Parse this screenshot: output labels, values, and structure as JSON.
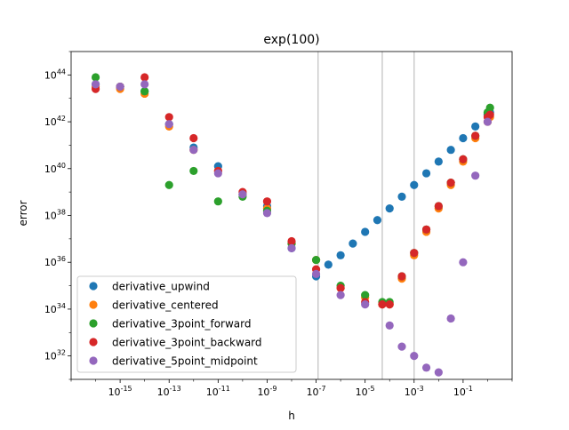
{
  "chart_data": {
    "type": "scatter",
    "title": "exp(100)",
    "xlabel": "h",
    "ylabel": "error",
    "xscale": "log",
    "yscale": "log",
    "xlim": [
      1e-17,
      10
    ],
    "ylim": [
      1e+31,
      1e+45
    ],
    "xticks": [
      {
        "exp": -15,
        "label": "10^-15"
      },
      {
        "exp": -13,
        "label": "10^-13"
      },
      {
        "exp": -11,
        "label": "10^-11"
      },
      {
        "exp": -9,
        "label": "10^-9"
      },
      {
        "exp": -7,
        "label": "10^-7"
      },
      {
        "exp": -5,
        "label": "10^-5"
      },
      {
        "exp": -3,
        "label": "10^-3"
      },
      {
        "exp": -1,
        "label": "10^-1"
      }
    ],
    "yticks": [
      {
        "exp": 32,
        "label": "10^32"
      },
      {
        "exp": 34,
        "label": "10^34"
      },
      {
        "exp": 36,
        "label": "10^36"
      },
      {
        "exp": 38,
        "label": "10^38"
      },
      {
        "exp": 40,
        "label": "10^40"
      },
      {
        "exp": 42,
        "label": "10^42"
      },
      {
        "exp": 44,
        "label": "10^44"
      }
    ],
    "vertical_lines": [
      1.2e-07,
      5e-05,
      0.001
    ],
    "legend_position": "lower-left",
    "series": [
      {
        "name": "derivative_upwind",
        "color": "#1f77b4",
        "points": [
          [
            -16.0,
            43.6
          ],
          [
            -15.0,
            43.5
          ],
          [
            -14.0,
            43.3
          ],
          [
            -13.0,
            41.9
          ],
          [
            -12.0,
            40.9
          ],
          [
            -11.0,
            40.1
          ],
          [
            -10.0,
            38.9
          ],
          [
            -9.0,
            38.4
          ],
          [
            -8.0,
            36.6
          ],
          [
            -7.0,
            35.4
          ],
          [
            -6.5,
            35.9
          ],
          [
            -6.0,
            36.3
          ],
          [
            -5.5,
            36.8
          ],
          [
            -5.0,
            37.3
          ],
          [
            -4.5,
            37.8
          ],
          [
            -4.0,
            38.3
          ],
          [
            -3.5,
            38.8
          ],
          [
            -3.0,
            39.3
          ],
          [
            -2.5,
            39.8
          ],
          [
            -2.0,
            40.3
          ],
          [
            -1.5,
            40.8
          ],
          [
            -1.0,
            41.3
          ],
          [
            -0.5,
            41.8
          ],
          [
            0.0,
            42.3
          ],
          [
            0.1,
            42.4
          ]
        ]
      },
      {
        "name": "derivative_centered",
        "color": "#ff7f0e",
        "points": [
          [
            -16.0,
            43.5
          ],
          [
            -15.0,
            43.4
          ],
          [
            -14.0,
            43.2
          ],
          [
            -13.0,
            41.8
          ],
          [
            -12.0,
            40.8
          ],
          [
            -11.0,
            39.9
          ],
          [
            -10.0,
            38.9
          ],
          [
            -9.0,
            38.3
          ],
          [
            -8.0,
            36.8
          ],
          [
            -7.0,
            36.1
          ],
          [
            -6.0,
            34.9
          ],
          [
            -5.0,
            34.5
          ],
          [
            -4.3,
            34.2
          ],
          [
            -4.0,
            34.2
          ],
          [
            -3.5,
            35.3
          ],
          [
            -3.0,
            36.3
          ],
          [
            -2.5,
            37.3
          ],
          [
            -2.0,
            38.3
          ],
          [
            -1.5,
            39.3
          ],
          [
            -1.0,
            40.3
          ],
          [
            -0.5,
            41.3
          ],
          [
            0.0,
            42.0
          ],
          [
            0.1,
            42.2
          ]
        ]
      },
      {
        "name": "derivative_3point_forward",
        "color": "#2ca02c",
        "points": [
          [
            -16.0,
            43.9
          ],
          [
            -15.0,
            43.5
          ],
          [
            -14.0,
            43.3
          ],
          [
            -13.0,
            39.3
          ],
          [
            -12.0,
            39.9
          ],
          [
            -11.0,
            38.6
          ],
          [
            -10.0,
            38.8
          ],
          [
            -9.0,
            38.2
          ],
          [
            -8.0,
            36.8
          ],
          [
            -7.0,
            36.1
          ],
          [
            -6.0,
            35.0
          ],
          [
            -5.0,
            34.6
          ],
          [
            -4.3,
            34.3
          ],
          [
            -4.0,
            34.3
          ],
          [
            -3.5,
            35.4
          ],
          [
            -3.0,
            36.4
          ],
          [
            -2.5,
            37.4
          ],
          [
            -2.0,
            38.4
          ],
          [
            -1.5,
            39.4
          ],
          [
            -1.0,
            40.4
          ],
          [
            -0.5,
            41.4
          ],
          [
            0.0,
            42.4
          ],
          [
            0.1,
            42.6
          ]
        ]
      },
      {
        "name": "derivative_3point_backward",
        "color": "#d62728",
        "points": [
          [
            -16.0,
            43.4
          ],
          [
            -15.0,
            43.5
          ],
          [
            -14.0,
            43.9
          ],
          [
            -13.0,
            42.2
          ],
          [
            -12.0,
            41.3
          ],
          [
            -11.0,
            39.9
          ],
          [
            -10.0,
            39.0
          ],
          [
            -9.0,
            38.6
          ],
          [
            -8.0,
            36.9
          ],
          [
            -7.0,
            35.7
          ],
          [
            -6.0,
            34.9
          ],
          [
            -5.0,
            34.3
          ],
          [
            -4.3,
            34.2
          ],
          [
            -4.0,
            34.2
          ],
          [
            -3.5,
            35.4
          ],
          [
            -3.0,
            36.4
          ],
          [
            -2.5,
            37.4
          ],
          [
            -2.0,
            38.4
          ],
          [
            -1.5,
            39.4
          ],
          [
            -1.0,
            40.4
          ],
          [
            -0.5,
            41.4
          ],
          [
            0.0,
            42.2
          ],
          [
            0.1,
            42.3
          ]
        ]
      },
      {
        "name": "derivative_5point_midpoint",
        "color": "#9467bd",
        "points": [
          [
            -16.0,
            43.6
          ],
          [
            -15.0,
            43.5
          ],
          [
            -14.0,
            43.6
          ],
          [
            -13.0,
            41.9
          ],
          [
            -12.0,
            40.8
          ],
          [
            -11.0,
            39.8
          ],
          [
            -10.0,
            38.9
          ],
          [
            -9.0,
            38.1
          ],
          [
            -8.0,
            36.6
          ],
          [
            -7.0,
            35.5
          ],
          [
            -6.0,
            34.6
          ],
          [
            -5.0,
            34.2
          ],
          [
            -4.0,
            33.3
          ],
          [
            -3.5,
            32.4
          ],
          [
            -3.0,
            32.0
          ],
          [
            -2.5,
            31.5
          ],
          [
            -2.0,
            31.3
          ],
          [
            -1.5,
            33.6
          ],
          [
            -1.0,
            36.0
          ],
          [
            -0.5,
            39.7
          ],
          [
            0.0,
            42.0
          ]
        ]
      }
    ]
  }
}
